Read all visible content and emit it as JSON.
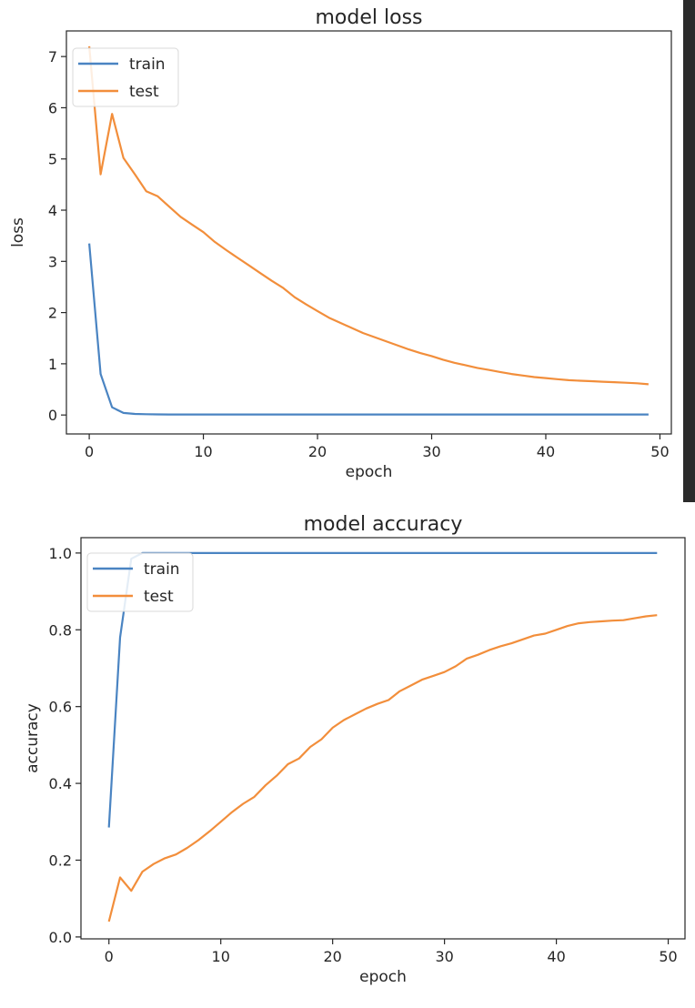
{
  "chart_data": [
    {
      "type": "line",
      "title": "model loss",
      "xlabel": "epoch",
      "ylabel": "loss",
      "xlim": [
        -2,
        51
      ],
      "ylim": [
        -0.37,
        7.5
      ],
      "xticks": [
        0,
        10,
        20,
        30,
        40,
        50
      ],
      "yticks": [
        0,
        1,
        2,
        3,
        4,
        5,
        6,
        7
      ],
      "grid": false,
      "legend_position": "upper-left",
      "x": [
        0,
        1,
        2,
        3,
        4,
        5,
        6,
        7,
        8,
        9,
        10,
        11,
        12,
        13,
        14,
        15,
        16,
        17,
        18,
        19,
        20,
        21,
        22,
        23,
        24,
        25,
        26,
        27,
        28,
        29,
        30,
        31,
        32,
        33,
        34,
        35,
        36,
        37,
        38,
        39,
        40,
        41,
        42,
        43,
        44,
        45,
        46,
        47,
        48,
        49
      ],
      "series": [
        {
          "name": "train",
          "color": "#4a84c2",
          "values": [
            3.35,
            0.8,
            0.15,
            0.04,
            0.02,
            0.015,
            0.012,
            0.01,
            0.01,
            0.01,
            0.01,
            0.01,
            0.01,
            0.01,
            0.01,
            0.01,
            0.01,
            0.01,
            0.01,
            0.01,
            0.01,
            0.01,
            0.01,
            0.01,
            0.01,
            0.01,
            0.01,
            0.01,
            0.01,
            0.01,
            0.01,
            0.01,
            0.01,
            0.01,
            0.01,
            0.01,
            0.01,
            0.01,
            0.01,
            0.01,
            0.01,
            0.01,
            0.01,
            0.01,
            0.01,
            0.01,
            0.01,
            0.01,
            0.01,
            0.01
          ]
        },
        {
          "name": "test",
          "color": "#f28e3b",
          "values": [
            7.2,
            4.7,
            5.88,
            5.02,
            4.7,
            4.37,
            4.27,
            4.07,
            3.87,
            3.72,
            3.57,
            3.38,
            3.22,
            3.07,
            2.92,
            2.77,
            2.62,
            2.48,
            2.3,
            2.16,
            2.03,
            1.9,
            1.8,
            1.7,
            1.6,
            1.52,
            1.44,
            1.36,
            1.28,
            1.21,
            1.15,
            1.08,
            1.02,
            0.97,
            0.92,
            0.88,
            0.84,
            0.8,
            0.77,
            0.74,
            0.72,
            0.7,
            0.68,
            0.67,
            0.66,
            0.65,
            0.64,
            0.63,
            0.62,
            0.6
          ]
        }
      ]
    },
    {
      "type": "line",
      "title": "model accuracy",
      "xlabel": "epoch",
      "ylabel": "accuracy",
      "xlim": [
        -2.5,
        51.5
      ],
      "ylim": [
        -0.005,
        1.04
      ],
      "xticks": [
        0,
        10,
        20,
        30,
        40,
        50
      ],
      "yticks": [
        0.0,
        0.2,
        0.4,
        0.6,
        0.8,
        1.0
      ],
      "ytick_labels": [
        "0.0",
        "0.2",
        "0.4",
        "0.6",
        "0.8",
        "1.0"
      ],
      "grid": false,
      "legend_position": "upper-left",
      "x": [
        0,
        1,
        2,
        3,
        4,
        5,
        6,
        7,
        8,
        9,
        10,
        11,
        12,
        13,
        14,
        15,
        16,
        17,
        18,
        19,
        20,
        21,
        22,
        23,
        24,
        25,
        26,
        27,
        28,
        29,
        30,
        31,
        32,
        33,
        34,
        35,
        36,
        37,
        38,
        39,
        40,
        41,
        42,
        43,
        44,
        45,
        46,
        47,
        48,
        49
      ],
      "series": [
        {
          "name": "train",
          "color": "#4a84c2",
          "values": [
            0.285,
            0.78,
            0.985,
            1.0,
            1.0,
            1.0,
            1.0,
            1.0,
            1.0,
            1.0,
            1.0,
            1.0,
            1.0,
            1.0,
            1.0,
            1.0,
            1.0,
            1.0,
            1.0,
            1.0,
            1.0,
            1.0,
            1.0,
            1.0,
            1.0,
            1.0,
            1.0,
            1.0,
            1.0,
            1.0,
            1.0,
            1.0,
            1.0,
            1.0,
            1.0,
            1.0,
            1.0,
            1.0,
            1.0,
            1.0,
            1.0,
            1.0,
            1.0,
            1.0,
            1.0,
            1.0,
            1.0,
            1.0,
            1.0,
            1.0
          ]
        },
        {
          "name": "test",
          "color": "#f28e3b",
          "values": [
            0.04,
            0.155,
            0.12,
            0.17,
            0.19,
            0.205,
            0.215,
            0.232,
            0.252,
            0.275,
            0.3,
            0.325,
            0.347,
            0.365,
            0.395,
            0.42,
            0.45,
            0.465,
            0.495,
            0.515,
            0.545,
            0.565,
            0.58,
            0.595,
            0.607,
            0.617,
            0.64,
            0.655,
            0.67,
            0.68,
            0.69,
            0.705,
            0.725,
            0.735,
            0.747,
            0.757,
            0.765,
            0.775,
            0.785,
            0.79,
            0.8,
            0.81,
            0.817,
            0.82,
            0.822,
            0.824,
            0.825,
            0.83,
            0.835,
            0.838
          ]
        }
      ]
    }
  ]
}
